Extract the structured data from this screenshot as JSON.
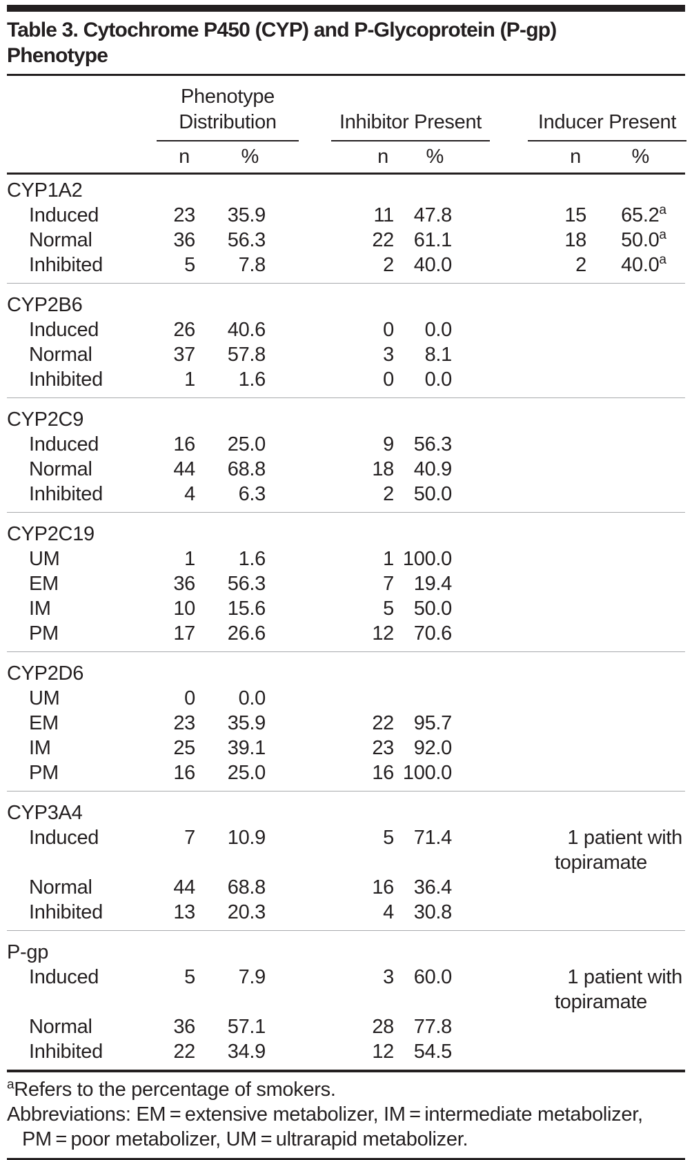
{
  "title": {
    "line1": "Table 3. Cytochrome P450 (CYP) and P-Glycoprotein (P-gp)",
    "line2": "Phenotype"
  },
  "table": {
    "column_groups": [
      {
        "line1": "Phenotype",
        "line2": "Distribution"
      },
      {
        "label": "Inhibitor Present"
      },
      {
        "label": "Inducer Present"
      }
    ],
    "subheaders": {
      "n": "n",
      "pct": "%"
    },
    "sections": [
      {
        "name": "CYP1A2",
        "rows": [
          {
            "label": "Induced",
            "pd_n": "23",
            "pd_pct": "35.9",
            "inh_n": "11",
            "inh_pct": "47.8",
            "ind_n": "15",
            "ind_pct": "65.2",
            "ind_sup": "a"
          },
          {
            "label": "Normal",
            "pd_n": "36",
            "pd_pct": "56.3",
            "inh_n": "22",
            "inh_pct": "61.1",
            "ind_n": "18",
            "ind_pct": "50.0",
            "ind_sup": "a"
          },
          {
            "label": "Inhibited",
            "pd_n": "5",
            "pd_pct": "7.8",
            "inh_n": "2",
            "inh_pct": "40.0",
            "ind_n": "2",
            "ind_pct": "40.0",
            "ind_sup": "a"
          }
        ]
      },
      {
        "name": "CYP2B6",
        "rows": [
          {
            "label": "Induced",
            "pd_n": "26",
            "pd_pct": "40.6",
            "inh_n": "0",
            "inh_pct": "0.0"
          },
          {
            "label": "Normal",
            "pd_n": "37",
            "pd_pct": "57.8",
            "inh_n": "3",
            "inh_pct": "8.1"
          },
          {
            "label": "Inhibited",
            "pd_n": "1",
            "pd_pct": "1.6",
            "inh_n": "0",
            "inh_pct": "0.0"
          }
        ]
      },
      {
        "name": "CYP2C9",
        "rows": [
          {
            "label": "Induced",
            "pd_n": "16",
            "pd_pct": "25.0",
            "inh_n": "9",
            "inh_pct": "56.3"
          },
          {
            "label": "Normal",
            "pd_n": "44",
            "pd_pct": "68.8",
            "inh_n": "18",
            "inh_pct": "40.9"
          },
          {
            "label": "Inhibited",
            "pd_n": "4",
            "pd_pct": "6.3",
            "inh_n": "2",
            "inh_pct": "50.0"
          }
        ]
      },
      {
        "name": "CYP2C19",
        "rows": [
          {
            "label": "UM",
            "pd_n": "1",
            "pd_pct": "1.6",
            "inh_n": "1",
            "inh_pct": "100.0"
          },
          {
            "label": "EM",
            "pd_n": "36",
            "pd_pct": "56.3",
            "inh_n": "7",
            "inh_pct": "19.4"
          },
          {
            "label": "IM",
            "pd_n": "10",
            "pd_pct": "15.6",
            "inh_n": "5",
            "inh_pct": "50.0"
          },
          {
            "label": "PM",
            "pd_n": "17",
            "pd_pct": "26.6",
            "inh_n": "12",
            "inh_pct": "70.6"
          }
        ]
      },
      {
        "name": "CYP2D6",
        "rows": [
          {
            "label": "UM",
            "pd_n": "0",
            "pd_pct": "0.0",
            "inh_n": "",
            "inh_pct": ""
          },
          {
            "label": "EM",
            "pd_n": "23",
            "pd_pct": "35.9",
            "inh_n": "22",
            "inh_pct": "95.7"
          },
          {
            "label": "IM",
            "pd_n": "25",
            "pd_pct": "39.1",
            "inh_n": "23",
            "inh_pct": "92.0"
          },
          {
            "label": "PM",
            "pd_n": "16",
            "pd_pct": "25.0",
            "inh_n": "16",
            "inh_pct": "100.0"
          }
        ]
      },
      {
        "name": "CYP3A4",
        "rows": [
          {
            "label": "Induced",
            "pd_n": "7",
            "pd_pct": "10.9",
            "inh_n": "5",
            "inh_pct": "71.4",
            "note": {
              "line1": "1 patient with",
              "line2": "topiramate"
            }
          },
          {
            "label": "Normal",
            "pd_n": "44",
            "pd_pct": "68.8",
            "inh_n": "16",
            "inh_pct": "36.4"
          },
          {
            "label": "Inhibited",
            "pd_n": "13",
            "pd_pct": "20.3",
            "inh_n": "4",
            "inh_pct": "30.8"
          }
        ]
      },
      {
        "name": "P-gp",
        "rows": [
          {
            "label": "Induced",
            "pd_n": "5",
            "pd_pct": "7.9",
            "inh_n": "3",
            "inh_pct": "60.0",
            "note": {
              "line1": "1 patient with",
              "line2": "topiramate"
            }
          },
          {
            "label": "Normal",
            "pd_n": "36",
            "pd_pct": "57.1",
            "inh_n": "28",
            "inh_pct": "77.8"
          },
          {
            "label": "Inhibited",
            "pd_n": "22",
            "pd_pct": "34.9",
            "inh_n": "12",
            "inh_pct": "54.5"
          }
        ]
      }
    ]
  },
  "footnotes": {
    "note_a_marker": "a",
    "note_a_text": "Refers to the percentage of smokers.",
    "abbrev_line1": "Abbreviations: EM = extensive metabolizer, IM = intermediate metabolizer,",
    "abbrev_line2": "PM = poor metabolizer, UM = ultrarapid metabolizer."
  },
  "colors": {
    "text": "#231f20",
    "rule": "#231f20",
    "section_separator": "#a7a9ac",
    "background": "#ffffff"
  }
}
